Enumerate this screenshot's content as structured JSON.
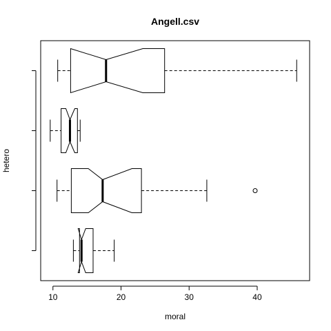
{
  "chart_data": {
    "type": "box",
    "orientation": "horizontal",
    "notch": true,
    "title": "Angell.csv",
    "xlabel": "moral",
    "ylabel": "hetero",
    "xlim": [
      8.2,
      47.7
    ],
    "x_ticks": [
      10,
      20,
      30,
      40
    ],
    "grid": false,
    "series_color": "#000000",
    "boxes": [
      {
        "position": 1,
        "whisker_low": 13.0,
        "notch_low": 13.7,
        "q1": 13.9,
        "median": 14.2,
        "notch_high": 14.8,
        "q3": 15.9,
        "whisker_high": 19.0,
        "outliers": []
      },
      {
        "position": 2,
        "whisker_low": 10.6,
        "notch_low": 15.2,
        "q1": 12.7,
        "median": 17.3,
        "notch_high": 21.6,
        "q3": 23.0,
        "whisker_high": 32.6,
        "outliers": [
          39.7
        ]
      },
      {
        "position": 3,
        "whisker_low": 9.6,
        "notch_low": 11.9,
        "q1": 11.2,
        "median": 12.5,
        "notch_high": 13.2,
        "q3": 13.6,
        "whisker_high": 14.0,
        "outliers": []
      },
      {
        "position": 4,
        "whisker_low": 10.7,
        "notch_low": 12.6,
        "q1": 12.6,
        "median": 17.8,
        "notch_high": 23.2,
        "q3": 26.4,
        "whisker_high": 45.8,
        "outliers": []
      }
    ]
  }
}
